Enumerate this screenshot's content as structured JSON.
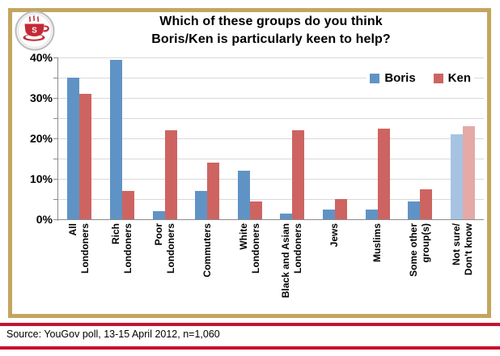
{
  "title": {
    "line1": "Which of these groups do you think",
    "line2": "Boris/Ken is particularly keen to help?"
  },
  "icons": {
    "logo": "coffee-cup-icon"
  },
  "logo": {
    "letter": "S"
  },
  "source": {
    "text": "Source: YouGov poll, 13-15 April 2012, n=1,060"
  },
  "colors": {
    "boris_blue": "#6093C5",
    "ken_red": "#CD6461",
    "muted_blue": "#A6C4E2",
    "muted_red": "#E5A9A8",
    "gridline": "#D9D9D9",
    "axis": "#8C8C8C",
    "frame_gold": "#C3A55F",
    "rule_red": "#C8102E",
    "logo_red": "#C32A36"
  },
  "chart_data": {
    "type": "bar",
    "title": "Which of these groups do you think Boris/Ken is particularly keen to help?",
    "categories": [
      "All Londoners",
      "Rich Londoners",
      "Poor Londoners",
      "Commuters",
      "White Londoners",
      "Black and Asian Londoners",
      "Jews",
      "Muslims",
      "Some other group(s)",
      "Not sure/Don't know"
    ],
    "category_label_lines": [
      [
        "All",
        "Londoners"
      ],
      [
        "Rich",
        "Londoners"
      ],
      [
        "Poor",
        "Londoners"
      ],
      [
        "Commuters"
      ],
      [
        "White",
        "Londoners"
      ],
      [
        "Black and Asian",
        "Londoners"
      ],
      [
        "Jews"
      ],
      [
        "Muslims"
      ],
      [
        "Some other",
        "group(s)"
      ],
      [
        "Not sure/",
        "Don't know"
      ]
    ],
    "series": [
      {
        "name": "Boris",
        "color": "#6093C5",
        "values": [
          35,
          39.5,
          2,
          7,
          12,
          1.5,
          2.5,
          2.5,
          4.5,
          21
        ]
      },
      {
        "name": "Ken",
        "color": "#CD6461",
        "values": [
          31,
          7,
          22,
          14,
          4.5,
          22,
          5,
          22.5,
          7.5,
          23
        ]
      }
    ],
    "muted_category": "Not sure/Don't know",
    "muted_colors": [
      "#A6C4E2",
      "#E5A9A8"
    ],
    "xlabel": "",
    "ylabel": "",
    "ylim": [
      0,
      40
    ],
    "gridline_step": 5,
    "ytick_labels": [
      "0%",
      "10%",
      "20%",
      "30%",
      "40%"
    ],
    "grid": true,
    "legend_position": "top-right"
  }
}
